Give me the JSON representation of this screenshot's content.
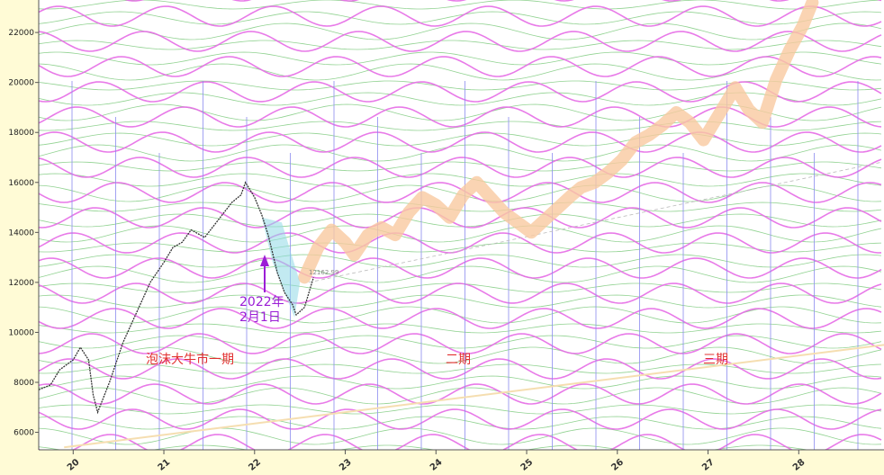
{
  "chart_data": {
    "type": "line",
    "y_ticks": [
      6000,
      8000,
      10000,
      12000,
      14000,
      16000,
      18000,
      20000,
      22000
    ],
    "ylim": [
      5300,
      23300
    ],
    "x_ticks": [
      "20",
      "21",
      "22",
      "23",
      "24",
      "25",
      "26",
      "27",
      "28"
    ],
    "xlim": [
      2019.62,
      2028.94
    ],
    "grid": true,
    "colors": {
      "background": "#ffffff",
      "axis_panel": "#fffbd6",
      "wave_pink": "#e66be6",
      "wave_green": "#6cc36c",
      "vline": "#8c8cf0",
      "price": "#333333",
      "projection": "#f9c9a0",
      "channel": "#8fd9e6",
      "annotation_purple": "#9b1ed6",
      "annotation_red": "#e23030",
      "trend": "#f5deb0"
    },
    "price_series": {
      "name": "",
      "x": [
        2019.62,
        2019.75,
        2019.85,
        2020.0,
        2020.08,
        2020.17,
        2020.22,
        2020.27,
        2020.4,
        2020.55,
        2020.7,
        2020.85,
        2021.0,
        2021.1,
        2021.2,
        2021.3,
        2021.45,
        2021.6,
        2021.75,
        2021.85,
        2021.9,
        2021.95,
        2022.0,
        2022.08,
        2022.15,
        2022.25,
        2022.33,
        2022.42,
        2022.46,
        2022.55,
        2022.65
      ],
      "y": [
        7700,
        7900,
        8500,
        8900,
        9400,
        8900,
        7500,
        6800,
        8000,
        9600,
        10800,
        12000,
        12800,
        13400,
        13600,
        14100,
        13800,
        14500,
        15200,
        15500,
        16000,
        15700,
        15400,
        14700,
        13900,
        12400,
        11600,
        11100,
        10700,
        11000,
        12200
      ]
    },
    "projection_series": {
      "name": "",
      "x": [
        2022.55,
        2022.7,
        2022.85,
        2023.0,
        2023.1,
        2023.25,
        2023.4,
        2023.55,
        2023.7,
        2023.85,
        2024.0,
        2024.15,
        2024.3,
        2024.45,
        2024.6,
        2024.75,
        2024.9,
        2025.05,
        2025.2,
        2025.35,
        2025.5,
        2025.6,
        2025.75,
        2025.9,
        2026.05,
        2026.2,
        2026.35,
        2026.5,
        2026.65,
        2026.8,
        2026.95,
        2027.1,
        2027.2,
        2027.3,
        2027.45,
        2027.6,
        2027.75,
        2027.9,
        2028.05,
        2028.15
      ],
      "y": [
        12200,
        13400,
        14100,
        13600,
        13100,
        13900,
        14200,
        13900,
        14800,
        15400,
        15100,
        14600,
        15500,
        16000,
        15400,
        14800,
        14400,
        14000,
        14500,
        15000,
        15500,
        15800,
        16000,
        16400,
        16900,
        17600,
        17900,
        18300,
        18800,
        18400,
        17700,
        18600,
        19200,
        19800,
        18900,
        18400,
        20100,
        21300,
        22300,
        23200
      ]
    },
    "annotations": {
      "date_label_line1": "2022年",
      "date_label_line2": "2月1日",
      "phase1": "泡沫大牛市一期",
      "phase2": "二期",
      "phase3": "三期",
      "price_tag": "12162.99"
    }
  }
}
